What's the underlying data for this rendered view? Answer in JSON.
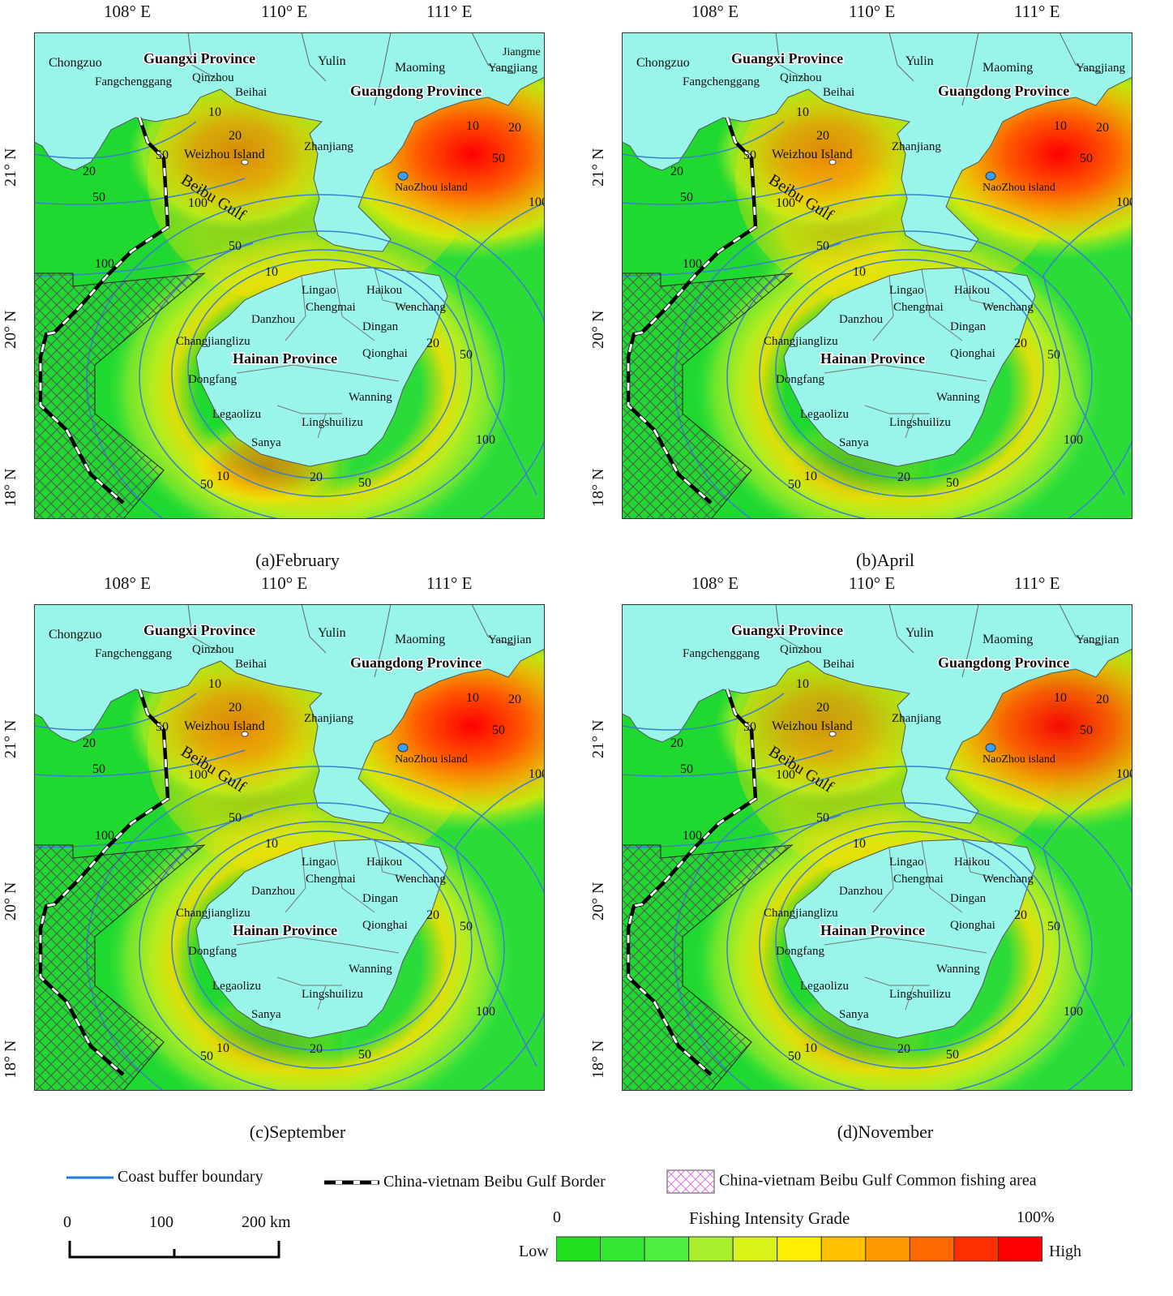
{
  "panels": [
    {
      "caption": "(a)February",
      "lon_ticks": [
        "108° E",
        "110° E",
        "111° E"
      ],
      "lat_ticks": [
        "21° N",
        "20° N",
        "18° N"
      ],
      "labels": {
        "guangxi": "Guangxi Province",
        "guangdong": "Guangdong Province",
        "hainan": "Hainan Province",
        "chongzuo": "Chongzuo",
        "fangchenggang": "Fangchenggang",
        "qinzhou": "Qinzhou",
        "beihai": "Beihai",
        "yulin": "Yulin",
        "maoming": "Maoming",
        "jiangmen": "Jiangme",
        "yangjiang": "Yangjiang",
        "zhanjiang": "Zhanjiang",
        "weizhou": "Weizhou Island",
        "naozhou": "NaoZhou island",
        "beibu": "Beibu Gulf",
        "lingao": "Lingao",
        "haikou": "Haikou",
        "chengmai": "Chengmai",
        "wenchang": "Wenchang",
        "danzhou": "Danzhou",
        "dingan": "Dingan",
        "changjiang": "Changjianglizu",
        "qionghai": "Qionghai",
        "dongfang": "Dongfang",
        "wanning": "Wanning",
        "ledong": "Legaolizu",
        "lingshui": "Lingshuilizu",
        "sanya": "Sanya"
      }
    },
    {
      "caption": "(b)April",
      "lon_ticks": [
        "108° E",
        "110° E",
        "111° E"
      ],
      "lat_ticks": [
        "21° N",
        "20° N",
        "18° N"
      ],
      "labels": {
        "guangxi": "Guangxi Province",
        "guangdong": "Guangdong Province",
        "hainan": "Hainan Province",
        "chongzuo": "Chongzuo",
        "fangchenggang": "Fangchenggang",
        "qinzhou": "Qinzhou",
        "beihai": "Beihai",
        "yulin": "Yulin",
        "maoming": "Maoming",
        "jiangmen": "",
        "yangjiang": "Yangjiang",
        "zhanjiang": "Zhanjiang",
        "weizhou": "Weizhou Island",
        "naozhou": "NaoZhou island",
        "beibu": "Beibu Gulf",
        "lingao": "Lingao",
        "haikou": "Haikou",
        "chengmai": "Chengmai",
        "wenchang": "Wenchang",
        "danzhou": "Danzhou",
        "dingan": "Dingan",
        "changjiang": "Changjianglizu",
        "qionghai": "Qionghai",
        "dongfang": "Dongfang",
        "wanning": "Wanning",
        "ledong": "Legaolizu",
        "lingshui": "Lingshuilizu",
        "sanya": "Sanya"
      }
    },
    {
      "caption": "(c)September",
      "lon_ticks": [
        "108° E",
        "110° E",
        "111° E"
      ],
      "lat_ticks": [
        "21° N",
        "20° N",
        "18° N"
      ],
      "labels": {
        "guangxi": "Guangxi Province",
        "guangdong": "Guangdong Province",
        "hainan": "Hainan Province",
        "chongzuo": "Chongzuo",
        "fangchenggang": "Fangchenggang",
        "qinzhou": "Qinzhou",
        "beihai": "Beihai",
        "yulin": "Yulin",
        "maoming": "Maoming",
        "jiangmen": "",
        "yangjiang": "Yangjian",
        "zhanjiang": "Zhanjiang",
        "weizhou": "Weizhou Island",
        "naozhou": "NaoZhou island",
        "beibu": "Beibu Gulf",
        "lingao": "Lingao",
        "haikou": "Haikou",
        "chengmai": "Chengmai",
        "wenchang": "Wenchang",
        "danzhou": "Danzhou",
        "dingan": "Dingan",
        "changjiang": "Changjianglizu",
        "qionghai": "Qionghai",
        "dongfang": "Dongfang",
        "wanning": "Wanning",
        "ledong": "Legaolizu",
        "lingshui": "Lingshuilizu",
        "sanya": "Sanya"
      }
    },
    {
      "caption": "(d)November",
      "lon_ticks": [
        "108° E",
        "110° E",
        "111° E"
      ],
      "lat_ticks": [
        "21° N",
        "20° N",
        "18° N"
      ],
      "labels": {
        "guangxi": "Guangxi Province",
        "guangdong": "Guangdong Province",
        "hainan": "Hainan Province",
        "chongzuo": "",
        "fangchenggang": "Fangchenggang",
        "qinzhou": "Qinzhou",
        "beihai": "Beihai",
        "yulin": "Yulin",
        "maoming": "Maoming",
        "jiangmen": "",
        "yangjiang": "Yangjian",
        "zhanjiang": "Zhanjiang",
        "weizhou": "Weizhou Island",
        "naozhou": "NaoZhou island",
        "beibu": "Beibu Gulf",
        "lingao": "Lingao",
        "haikou": "Haikou",
        "chengmai": "Chengmai",
        "wenchang": "Wenchang",
        "danzhou": "Danzhou",
        "dingan": "Dingan",
        "changjiang": "Changjianglizu",
        "qionghai": "Qionghai",
        "dongfang": "Dongfang",
        "wanning": "Wanning",
        "ledong": "Legaolizu",
        "lingshui": "Lingshuilizu",
        "sanya": "Sanya"
      }
    }
  ],
  "contour_labels": [
    "10",
    "20",
    "50",
    "100"
  ],
  "legend": {
    "coast_buffer": "Coast buffer boundary",
    "border": "China-vietnam Beibu Gulf Border",
    "common_area": "China-vietnam Beibu Gulf Common fishing area",
    "scale_ticks": [
      "0",
      "100",
      "200 km"
    ],
    "intensity_title": "Fishing Intensity Grade",
    "intensity_min": "0",
    "intensity_max": "100%",
    "low": "Low",
    "high": "High",
    "ramp_colors": [
      "#1fe01f",
      "#33e833",
      "#4df040",
      "#a8ee2a",
      "#d8f21a",
      "#fff000",
      "#ffc000",
      "#ff9a00",
      "#ff6a00",
      "#ff3000",
      "#ff0000"
    ]
  },
  "colors": {
    "sea_base": "#21d833",
    "land": "#99f5ea",
    "buffer_line": "#3a7fd0",
    "hotspot": "#ff1a00"
  }
}
